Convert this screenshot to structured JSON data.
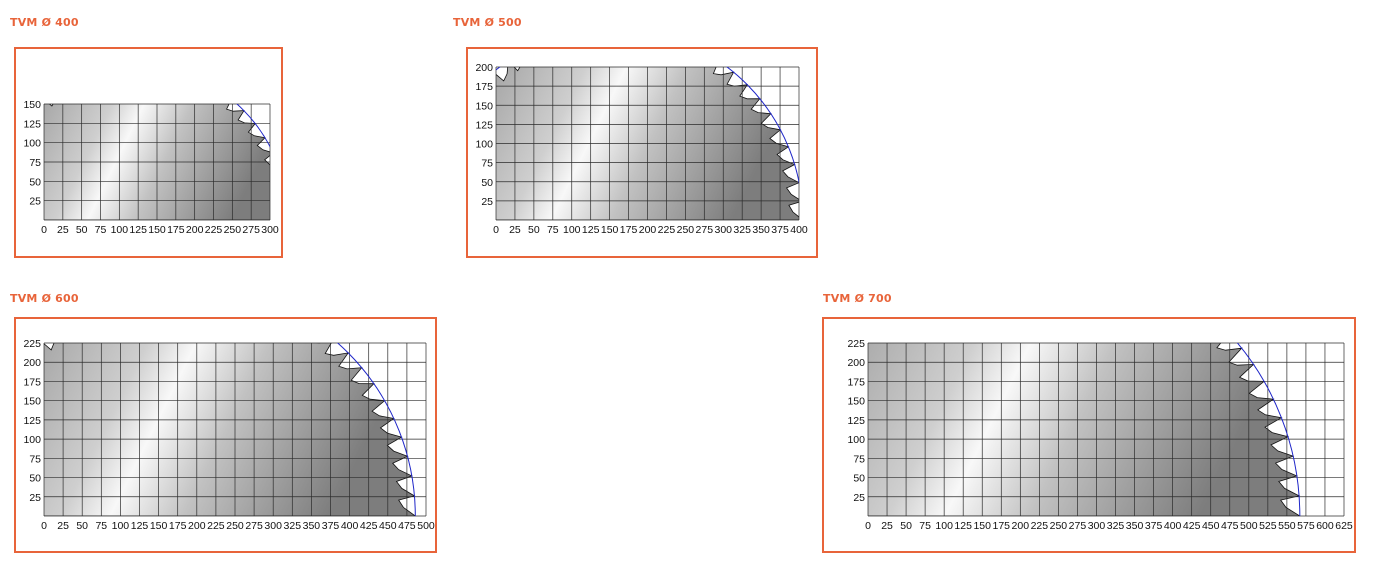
{
  "colors": {
    "accent": "#e8643a",
    "grid": "#2b2b2b",
    "arc": "#1f26c8",
    "blade_light": "#f8f8f8",
    "blade_dark": "#7d7d7d"
  },
  "diagrams": [
    {
      "title": "TVM Ø 400",
      "diameter": 400,
      "x_ticks": [
        "0",
        "25",
        "50",
        "75",
        "100",
        "125",
        "150",
        "175",
        "200",
        "225",
        "250",
        "275",
        "300"
      ],
      "y_ticks": [
        "25",
        "50",
        "75",
        "100",
        "125",
        "150"
      ],
      "teeth": 28
    },
    {
      "title": "TVM Ø 500",
      "diameter": 500,
      "x_ticks": [
        "0",
        "25",
        "50",
        "75",
        "100",
        "125",
        "150",
        "175",
        "200",
        "225",
        "250",
        "275",
        "300",
        "325",
        "350",
        "375",
        "400"
      ],
      "y_ticks": [
        "25",
        "50",
        "75",
        "100",
        "125",
        "150",
        "175",
        "200"
      ],
      "teeth": 32
    },
    {
      "title": "TVM Ø 600",
      "diameter": 600,
      "x_ticks": [
        "0",
        "25",
        "50",
        "75",
        "100",
        "125",
        "150",
        "175",
        "200",
        "225",
        "250",
        "275",
        "300",
        "325",
        "350",
        "375",
        "400",
        "425",
        "450",
        "475",
        "500"
      ],
      "y_ticks": [
        "25",
        "50",
        "75",
        "100",
        "125",
        "150",
        "175",
        "200",
        "225"
      ],
      "teeth": 36
    },
    {
      "title": "TVM Ø 700",
      "diameter": 700,
      "x_ticks": [
        "0",
        "25",
        "50",
        "75",
        "100",
        "125",
        "150",
        "175",
        "200",
        "225",
        "250",
        "275",
        "300",
        "325",
        "350",
        "375",
        "400",
        "425",
        "450",
        "475",
        "500",
        "525",
        "550",
        "575",
        "600",
        "625"
      ],
      "y_ticks": [
        "25",
        "50",
        "75",
        "100",
        "125",
        "150",
        "175",
        "200",
        "225"
      ],
      "teeth": 42
    }
  ]
}
